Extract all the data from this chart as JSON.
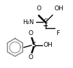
{
  "bg_color": "#ffffff",
  "line_color": "#000000",
  "ring_color": "#7f7f7f",
  "figsize": [
    1.07,
    0.99
  ],
  "dpi": 100,
  "xlim": [
    0,
    107
  ],
  "ylim": [
    0,
    99
  ]
}
